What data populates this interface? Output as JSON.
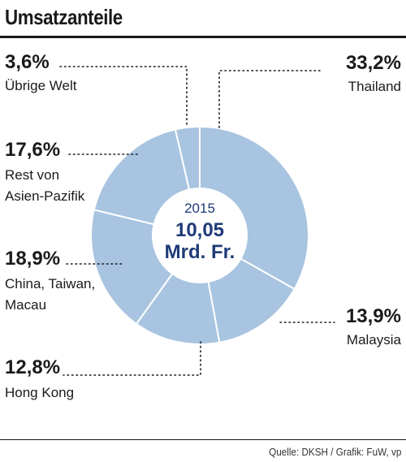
{
  "title": "Umsatzanteile",
  "source": "Quelle: DKSH / Grafik: FuW, vp",
  "colors": {
    "slice": "#a8c4e0",
    "center_text": "#1f3a78",
    "text": "#1a1a1a"
  },
  "chart_data": {
    "type": "pie",
    "title": "Umsatzanteile",
    "center": {
      "year": "2015",
      "line1": "10,05",
      "line2": "Mrd. Fr."
    },
    "slices": [
      {
        "pct_label": "33,2%",
        "value": 33.2,
        "label_lines": [
          "Thailand"
        ]
      },
      {
        "pct_label": "13,9%",
        "value": 13.9,
        "label_lines": [
          "Malaysia"
        ]
      },
      {
        "pct_label": "12,8%",
        "value": 12.8,
        "label_lines": [
          "Hong Kong"
        ]
      },
      {
        "pct_label": "18,9%",
        "value": 18.9,
        "label_lines": [
          "China, Taiwan,",
          "Macau"
        ]
      },
      {
        "pct_label": "17,6%",
        "value": 17.6,
        "label_lines": [
          "Rest von",
          "Asien-Pazifik"
        ]
      },
      {
        "pct_label": "3,6%",
        "value": 3.6,
        "label_lines": [
          "Übrige Welt"
        ]
      }
    ]
  }
}
